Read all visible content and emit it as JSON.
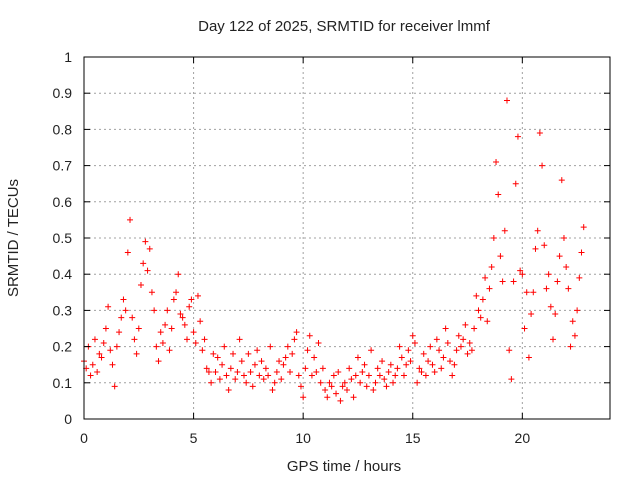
{
  "chart_data": {
    "type": "scatter",
    "title": "Day 122 of 2025, SRMTID for receiver lmmf",
    "xlabel": "GPS time / hours",
    "ylabel": "SRMTID / TECUs",
    "xlim": [
      0,
      24
    ],
    "ylim": [
      0,
      1
    ],
    "xticks": [
      0,
      5,
      10,
      15,
      20
    ],
    "xtick_labels": [
      "0",
      "5",
      "10",
      "15",
      "20"
    ],
    "yticks": [
      0,
      0.1,
      0.2,
      0.3,
      0.4,
      0.5,
      0.6,
      0.7,
      0.8,
      0.9,
      1
    ],
    "ytick_labels": [
      "0",
      "0.1",
      "0.2",
      "0.3",
      "0.4",
      "0.5",
      "0.6",
      "0.7",
      "0.8",
      "0.9",
      "1"
    ],
    "grid": true,
    "marker": "+",
    "marker_color": "#ff0000",
    "series": [
      {
        "name": "SRMTID",
        "x": [
          0.0,
          0.1,
          0.2,
          0.3,
          0.4,
          0.5,
          0.6,
          0.7,
          0.8,
          0.9,
          1.0,
          1.1,
          1.2,
          1.3,
          1.4,
          1.5,
          1.6,
          1.7,
          1.8,
          1.9,
          2.0,
          2.1,
          2.2,
          2.3,
          2.4,
          2.5,
          2.6,
          2.7,
          2.8,
          2.9,
          3.0,
          3.1,
          3.2,
          3.3,
          3.4,
          3.5,
          3.6,
          3.7,
          3.8,
          3.9,
          4.0,
          4.1,
          4.2,
          4.3,
          4.4,
          4.5,
          4.6,
          4.7,
          4.8,
          4.9,
          5.0,
          5.1,
          5.2,
          5.3,
          5.4,
          5.5,
          5.6,
          5.7,
          5.8,
          5.9,
          6.0,
          6.1,
          6.2,
          6.3,
          6.4,
          6.5,
          6.6,
          6.7,
          6.8,
          6.9,
          7.0,
          7.1,
          7.2,
          7.3,
          7.4,
          7.5,
          7.6,
          7.7,
          7.8,
          7.9,
          8.0,
          8.1,
          8.2,
          8.3,
          8.4,
          8.5,
          8.6,
          8.7,
          8.8,
          8.9,
          9.0,
          9.1,
          9.2,
          9.3,
          9.4,
          9.5,
          9.6,
          9.7,
          9.8,
          9.9,
          10.0,
          10.1,
          10.2,
          10.3,
          10.4,
          10.5,
          10.6,
          10.7,
          10.8,
          10.9,
          11.0,
          11.1,
          11.2,
          11.3,
          11.4,
          11.5,
          11.6,
          11.7,
          11.8,
          11.9,
          12.0,
          12.1,
          12.2,
          12.3,
          12.4,
          12.5,
          12.6,
          12.7,
          12.8,
          12.9,
          13.0,
          13.1,
          13.2,
          13.3,
          13.4,
          13.5,
          13.6,
          13.7,
          13.8,
          13.9,
          14.0,
          14.1,
          14.2,
          14.3,
          14.4,
          14.5,
          14.6,
          14.7,
          14.8,
          14.9,
          15.0,
          15.1,
          15.2,
          15.3,
          15.4,
          15.5,
          15.6,
          15.7,
          15.8,
          15.9,
          16.0,
          16.1,
          16.2,
          16.3,
          16.4,
          16.5,
          16.6,
          16.7,
          16.8,
          16.9,
          17.0,
          17.1,
          17.2,
          17.3,
          17.4,
          17.5,
          17.6,
          17.7,
          17.8,
          17.9,
          18.0,
          18.1,
          18.2,
          18.3,
          18.4,
          18.5,
          18.6,
          18.7,
          18.8,
          18.9,
          19.0,
          19.1,
          19.2,
          19.3,
          19.4,
          19.5,
          19.6,
          19.7,
          19.8,
          19.9,
          20.0,
          20.1,
          20.2,
          20.3,
          20.4,
          20.5,
          20.6,
          20.7,
          20.8,
          20.9,
          21.0,
          21.1,
          21.2,
          21.3,
          21.4,
          21.5,
          21.6,
          21.7,
          21.8,
          21.9,
          22.0,
          22.1,
          22.2,
          22.3,
          22.4,
          22.5,
          22.6,
          22.7,
          22.8
        ],
        "y": [
          0.16,
          0.14,
          0.2,
          0.12,
          0.15,
          0.22,
          0.13,
          0.18,
          0.17,
          0.21,
          0.25,
          0.31,
          0.19,
          0.15,
          0.09,
          0.2,
          0.24,
          0.28,
          0.33,
          0.3,
          0.46,
          0.55,
          0.28,
          0.22,
          0.18,
          0.25,
          0.37,
          0.43,
          0.49,
          0.41,
          0.47,
          0.35,
          0.3,
          0.2,
          0.16,
          0.24,
          0.21,
          0.26,
          0.3,
          0.19,
          0.25,
          0.33,
          0.35,
          0.4,
          0.29,
          0.28,
          0.26,
          0.22,
          0.31,
          0.33,
          0.24,
          0.21,
          0.34,
          0.27,
          0.19,
          0.22,
          0.14,
          0.13,
          0.1,
          0.18,
          0.13,
          0.17,
          0.11,
          0.15,
          0.2,
          0.12,
          0.08,
          0.14,
          0.18,
          0.11,
          0.13,
          0.22,
          0.16,
          0.12,
          0.1,
          0.18,
          0.13,
          0.09,
          0.15,
          0.19,
          0.12,
          0.16,
          0.11,
          0.14,
          0.12,
          0.2,
          0.08,
          0.1,
          0.13,
          0.16,
          0.11,
          0.15,
          0.17,
          0.2,
          0.13,
          0.18,
          0.22,
          0.24,
          0.12,
          0.09,
          0.06,
          0.14,
          0.19,
          0.23,
          0.12,
          0.17,
          0.13,
          0.21,
          0.1,
          0.14,
          0.08,
          0.06,
          0.1,
          0.09,
          0.12,
          0.07,
          0.13,
          0.05,
          0.09,
          0.1,
          0.08,
          0.14,
          0.11,
          0.06,
          0.12,
          0.17,
          0.1,
          0.13,
          0.15,
          0.09,
          0.12,
          0.19,
          0.08,
          0.1,
          0.14,
          0.12,
          0.16,
          0.11,
          0.09,
          0.13,
          0.15,
          0.1,
          0.12,
          0.14,
          0.2,
          0.17,
          0.12,
          0.15,
          0.19,
          0.16,
          0.23,
          0.21,
          0.1,
          0.14,
          0.13,
          0.18,
          0.12,
          0.16,
          0.2,
          0.15,
          0.13,
          0.22,
          0.19,
          0.14,
          0.17,
          0.25,
          0.21,
          0.16,
          0.12,
          0.15,
          0.19,
          0.23,
          0.2,
          0.22,
          0.26,
          0.18,
          0.21,
          0.19,
          0.25,
          0.34,
          0.3,
          0.28,
          0.33,
          0.39,
          0.27,
          0.36,
          0.42,
          0.5,
          0.71,
          0.62,
          0.45,
          0.38,
          0.52,
          0.88,
          0.19,
          0.11,
          0.38,
          0.65,
          0.78,
          0.41,
          0.4,
          0.25,
          0.35,
          0.17,
          0.29,
          0.35,
          0.47,
          0.52,
          0.79,
          0.7,
          0.48,
          0.36,
          0.4,
          0.31,
          0.22,
          0.29,
          0.38,
          0.45,
          0.66,
          0.5,
          0.42,
          0.36,
          0.2,
          0.27,
          0.23,
          0.3,
          0.39,
          0.46,
          0.53
        ]
      }
    ]
  }
}
